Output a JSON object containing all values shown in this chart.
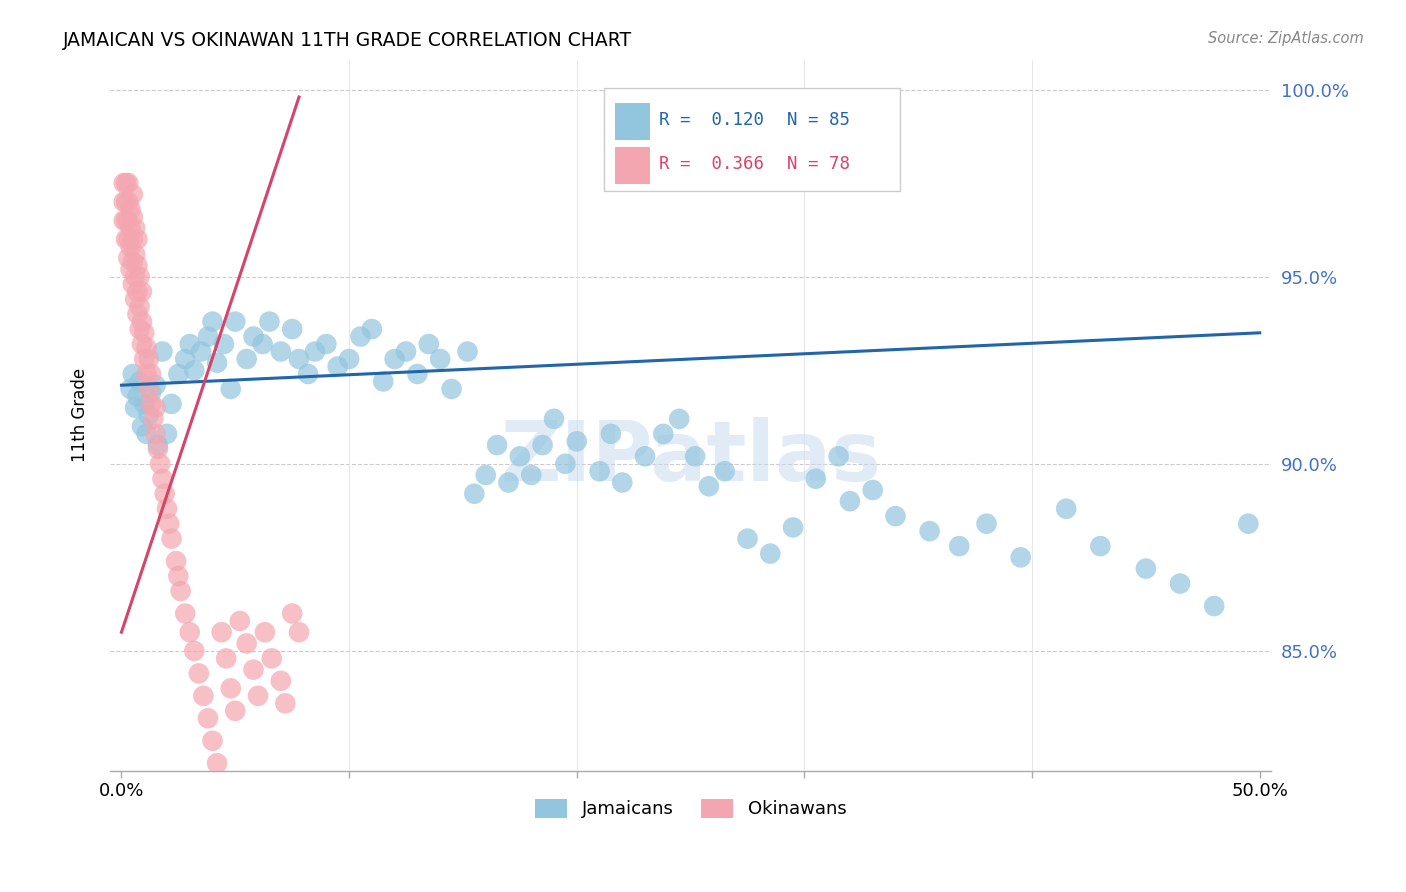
{
  "title": "JAMAICAN VS OKINAWAN 11TH GRADE CORRELATION CHART",
  "source": "Source: ZipAtlas.com",
  "ylabel": "11th Grade",
  "ylim": [
    0.818,
    1.008
  ],
  "xlim": [
    -0.005,
    0.505
  ],
  "yticks": [
    0.85,
    0.9,
    0.95,
    1.0
  ],
  "ytick_labels": [
    "85.0%",
    "90.0%",
    "95.0%",
    "100.0%"
  ],
  "legend_r_blue": "R =  0.120",
  "legend_n_blue": "N = 85",
  "legend_r_pink": "R =  0.366",
  "legend_n_pink": "N = 78",
  "blue_color": "#92C5DE",
  "pink_color": "#F4A6B0",
  "trend_blue": "#2166AC",
  "trend_pink": "#D6446A",
  "watermark": "ZIPatlas",
  "jamaican_x": [
    0.004,
    0.005,
    0.006,
    0.007,
    0.008,
    0.009,
    0.01,
    0.011,
    0.012,
    0.013,
    0.015,
    0.016,
    0.018,
    0.02,
    0.022,
    0.025,
    0.028,
    0.03,
    0.032,
    0.035,
    0.038,
    0.04,
    0.042,
    0.045,
    0.048,
    0.05,
    0.055,
    0.058,
    0.062,
    0.065,
    0.07,
    0.075,
    0.078,
    0.082,
    0.085,
    0.09,
    0.095,
    0.1,
    0.105,
    0.11,
    0.115,
    0.12,
    0.125,
    0.13,
    0.135,
    0.14,
    0.145,
    0.152,
    0.155,
    0.16,
    0.165,
    0.17,
    0.175,
    0.18,
    0.185,
    0.19,
    0.195,
    0.2,
    0.21,
    0.215,
    0.22,
    0.23,
    0.238,
    0.245,
    0.252,
    0.258,
    0.265,
    0.275,
    0.285,
    0.295,
    0.305,
    0.315,
    0.32,
    0.33,
    0.34,
    0.355,
    0.368,
    0.38,
    0.395,
    0.415,
    0.43,
    0.45,
    0.465,
    0.48,
    0.495
  ],
  "jamaican_y": [
    0.92,
    0.924,
    0.915,
    0.918,
    0.922,
    0.91,
    0.916,
    0.908,
    0.913,
    0.919,
    0.921,
    0.905,
    0.93,
    0.908,
    0.916,
    0.924,
    0.928,
    0.932,
    0.925,
    0.93,
    0.934,
    0.938,
    0.927,
    0.932,
    0.92,
    0.938,
    0.928,
    0.934,
    0.932,
    0.938,
    0.93,
    0.936,
    0.928,
    0.924,
    0.93,
    0.932,
    0.926,
    0.928,
    0.934,
    0.936,
    0.922,
    0.928,
    0.93,
    0.924,
    0.932,
    0.928,
    0.92,
    0.93,
    0.892,
    0.897,
    0.905,
    0.895,
    0.902,
    0.897,
    0.905,
    0.912,
    0.9,
    0.906,
    0.898,
    0.908,
    0.895,
    0.902,
    0.908,
    0.912,
    0.902,
    0.894,
    0.898,
    0.88,
    0.876,
    0.883,
    0.896,
    0.902,
    0.89,
    0.893,
    0.886,
    0.882,
    0.878,
    0.884,
    0.875,
    0.888,
    0.878,
    0.872,
    0.868,
    0.862,
    0.884
  ],
  "okinawan_x": [
    0.001,
    0.001,
    0.001,
    0.002,
    0.002,
    0.002,
    0.002,
    0.003,
    0.003,
    0.003,
    0.003,
    0.003,
    0.004,
    0.004,
    0.004,
    0.004,
    0.005,
    0.005,
    0.005,
    0.005,
    0.005,
    0.006,
    0.006,
    0.006,
    0.006,
    0.007,
    0.007,
    0.007,
    0.007,
    0.008,
    0.008,
    0.008,
    0.009,
    0.009,
    0.009,
    0.01,
    0.01,
    0.011,
    0.011,
    0.012,
    0.012,
    0.013,
    0.013,
    0.014,
    0.015,
    0.015,
    0.016,
    0.017,
    0.018,
    0.019,
    0.02,
    0.021,
    0.022,
    0.024,
    0.025,
    0.026,
    0.028,
    0.03,
    0.032,
    0.034,
    0.036,
    0.038,
    0.04,
    0.042,
    0.044,
    0.046,
    0.048,
    0.05,
    0.052,
    0.055,
    0.058,
    0.06,
    0.063,
    0.066,
    0.07,
    0.072,
    0.075,
    0.078
  ],
  "okinawan_y": [
    0.965,
    0.97,
    0.975,
    0.96,
    0.965,
    0.97,
    0.975,
    0.955,
    0.96,
    0.965,
    0.97,
    0.975,
    0.952,
    0.958,
    0.963,
    0.968,
    0.948,
    0.954,
    0.96,
    0.966,
    0.972,
    0.944,
    0.95,
    0.956,
    0.963,
    0.94,
    0.946,
    0.953,
    0.96,
    0.936,
    0.942,
    0.95,
    0.932,
    0.938,
    0.946,
    0.928,
    0.935,
    0.924,
    0.931,
    0.92,
    0.928,
    0.916,
    0.924,
    0.912,
    0.908,
    0.915,
    0.904,
    0.9,
    0.896,
    0.892,
    0.888,
    0.884,
    0.88,
    0.874,
    0.87,
    0.866,
    0.86,
    0.855,
    0.85,
    0.844,
    0.838,
    0.832,
    0.826,
    0.82,
    0.855,
    0.848,
    0.84,
    0.834,
    0.858,
    0.852,
    0.845,
    0.838,
    0.855,
    0.848,
    0.842,
    0.836,
    0.86,
    0.855
  ]
}
